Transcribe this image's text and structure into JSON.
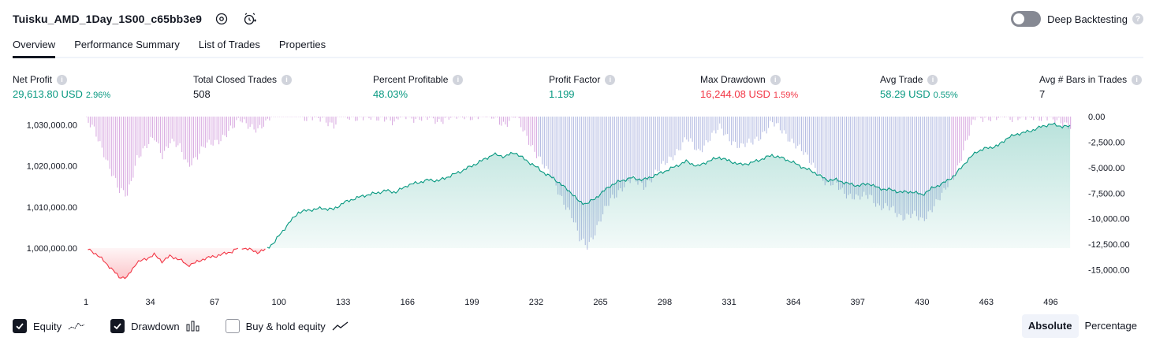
{
  "header": {
    "title": "Tuisku_AMD_1Day_1S00_c65bb3e9",
    "icons": [
      "settings-icon",
      "add-alert-icon"
    ],
    "deep_backtesting_label": "Deep Backtesting",
    "deep_backtesting_on": false
  },
  "tabs": [
    {
      "label": "Overview",
      "active": true
    },
    {
      "label": "Performance Summary",
      "active": false
    },
    {
      "label": "List of Trades",
      "active": false
    },
    {
      "label": "Properties",
      "active": false
    }
  ],
  "metrics": [
    {
      "label": "Net Profit",
      "value": "29,613.80 USD",
      "pct": "2.96%",
      "color": "green"
    },
    {
      "label": "Total Closed Trades",
      "value": "508",
      "pct": "",
      "color": "dark"
    },
    {
      "label": "Percent Profitable",
      "value": "48.03%",
      "pct": "",
      "color": "green"
    },
    {
      "label": "Profit Factor",
      "value": "1.199",
      "pct": "",
      "color": "green"
    },
    {
      "label": "Max Drawdown",
      "value": "16,244.08 USD",
      "pct": "1.59%",
      "color": "red"
    },
    {
      "label": "Avg Trade",
      "value": "58.29 USD",
      "pct": "0.55%",
      "color": "green"
    },
    {
      "label": "Avg # Bars in Trades",
      "value": "7",
      "pct": "",
      "color": "dark"
    }
  ],
  "chart_data": {
    "type": "area",
    "left_axis": {
      "ticks": [
        "1,030,000.00",
        "1,020,000.00",
        "1,010,000.00",
        "1,000,000.00"
      ],
      "range": [
        991000,
        1032000
      ]
    },
    "right_axis": {
      "ticks": [
        "0.00",
        "-2,500.00",
        "-5,000.00",
        "-7,500.00",
        "-10,000.00",
        "-12,500.00",
        "-15,000.00"
      ],
      "range": [
        -16500,
        0
      ]
    },
    "x_ticks": [
      "1",
      "34",
      "67",
      "100",
      "133",
      "166",
      "199",
      "232",
      "265",
      "298",
      "331",
      "364",
      "397",
      "430",
      "463",
      "496"
    ],
    "x_range": [
      1,
      510
    ],
    "baseline": 1000000,
    "series": [
      {
        "name": "Equity",
        "color_pos": "#089981",
        "color_neg": "#f23645",
        "x": [
          1,
          5,
          10,
          14,
          18,
          22,
          27,
          31,
          36,
          40,
          44,
          49,
          53,
          58,
          62,
          67,
          71,
          76,
          80,
          84,
          89,
          93,
          98,
          100,
          105,
          110,
          116,
          122,
          128,
          133,
          139,
          144,
          150,
          155,
          160,
          166,
          171,
          177,
          182,
          188,
          193,
          199,
          205,
          210,
          216,
          221,
          227,
          230,
          233,
          237,
          241,
          246,
          250,
          254,
          258,
          262,
          266,
          270,
          275,
          281,
          287,
          293,
          298,
          304,
          309,
          315,
          320,
          326,
          331,
          337,
          342,
          348,
          353,
          359,
          364,
          370,
          375,
          381,
          386,
          392,
          397,
          403,
          408,
          414,
          419,
          425,
          430,
          436,
          441,
          447,
          452,
          458,
          463,
          469,
          474,
          480,
          485,
          491,
          496,
          502,
          506
        ],
        "y": [
          1000000,
          999000,
          997000,
          995000,
          993000,
          992800,
          996500,
          997200,
          998400,
          996800,
          998000,
          997300,
          995800,
          996600,
          997500,
          998000,
          998500,
          999200,
          1000200,
          999800,
          999000,
          999600,
          1001600,
          1003000,
          1006000,
          1008700,
          1009300,
          1009700,
          1009400,
          1011000,
          1012100,
          1012800,
          1013400,
          1014000,
          1013600,
          1015300,
          1015900,
          1016600,
          1016400,
          1017600,
          1018600,
          1020000,
          1021500,
          1022800,
          1022300,
          1023300,
          1021300,
          1020400,
          1019400,
          1018000,
          1017000,
          1015000,
          1013500,
          1011300,
          1010800,
          1012000,
          1013600,
          1015200,
          1016300,
          1017100,
          1016600,
          1017700,
          1018700,
          1020000,
          1021100,
          1019900,
          1021100,
          1022100,
          1021200,
          1020300,
          1020700,
          1021700,
          1022600,
          1021800,
          1020800,
          1019400,
          1018400,
          1016600,
          1016600,
          1015700,
          1015200,
          1015700,
          1014500,
          1014200,
          1013600,
          1013700,
          1013000,
          1014800,
          1015800,
          1017800,
          1020700,
          1023500,
          1024300,
          1024900,
          1026900,
          1027900,
          1028400,
          1029500,
          1030200,
          1029600,
          1029600
        ]
      },
      {
        "name": "Drawdown",
        "color": "#c9a9e0"
      }
    ],
    "legend": [
      "Equity",
      "Drawdown",
      "Buy & hold equity"
    ],
    "colors": {
      "equity_pos": "#089981",
      "equity_neg": "#f23645",
      "drawdown": "#ce93d8",
      "drawdown_alt": "#9fa8da"
    }
  },
  "footer": {
    "equity_label": "Equity",
    "drawdown_label": "Drawdown",
    "buyhold_label": "Buy & hold equity",
    "equity_checked": true,
    "drawdown_checked": true,
    "buyhold_checked": false,
    "absolute_label": "Absolute",
    "percentage_label": "Percentage",
    "active_mode": "Absolute"
  }
}
